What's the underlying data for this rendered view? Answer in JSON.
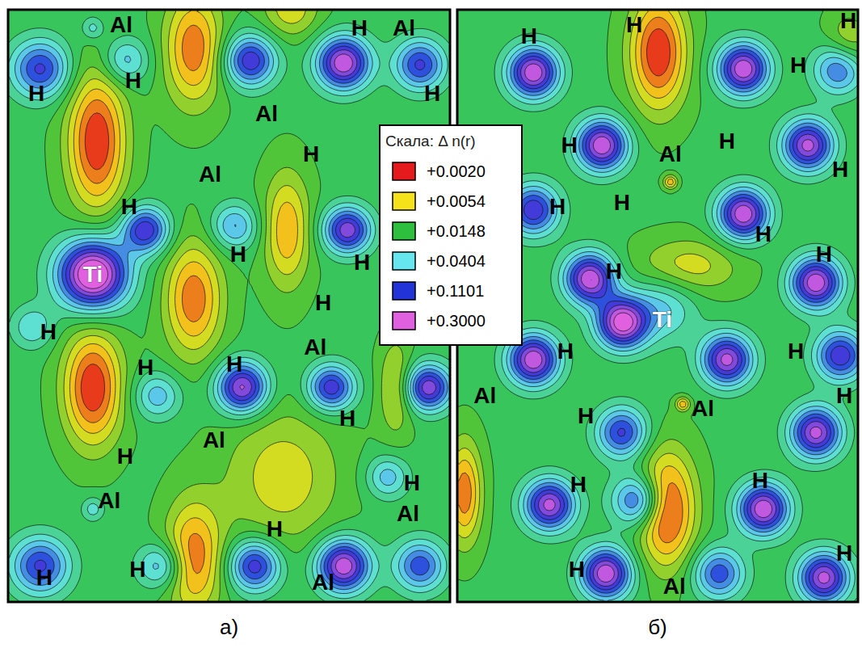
{
  "chart_data": {
    "type": "contour",
    "tick_labels": false,
    "legend": "top",
    "color_scale": {
      "title": "Скала: Δ n(r)",
      "ticks": [
        {
          "value": 0.002,
          "label": "+0.0020"
        },
        {
          "value": 0.0054,
          "label": "+0.0054"
        },
        {
          "value": 0.0148,
          "label": "+0.0148"
        },
        {
          "value": 0.0404,
          "label": "+0.0404"
        },
        {
          "value": 0.1101,
          "label": "+0.1101"
        },
        {
          "value": 0.3,
          "label": "+0.3000"
        }
      ],
      "colors": [
        "#e41a1c",
        "#f5e21b",
        "#2fbf3f",
        "#66e6ee",
        "#2233d8",
        "#e060e0"
      ]
    },
    "panels": [
      {
        "label": "а)",
        "xlim": [
          0,
          100
        ],
        "ylim": [
          0,
          100
        ],
        "background": 0.016,
        "features": [
          {
            "x": 7.3,
            "y": 10.0,
            "value": 0.12,
            "rx": 4.6,
            "ry": 3.4
          },
          {
            "x": 26.5,
            "y": 8.6,
            "value": 0.05,
            "rx": 3.7,
            "ry": 2.7
          },
          {
            "x": 54.8,
            "y": 8.6,
            "value": 0.15,
            "rx": 4.0,
            "ry": 3.0
          },
          {
            "x": 75.9,
            "y": 9.0,
            "value": 0.3,
            "rx": 4.2,
            "ry": 3.1
          },
          {
            "x": 93.2,
            "y": 9.3,
            "value": 0.12,
            "rx": 4.0,
            "ry": 3.0
          },
          {
            "x": 19.2,
            "y": 3.1,
            "value": 0.035,
            "rx": 1.8,
            "ry": 1.4
          },
          {
            "x": 31.1,
            "y": 37.2,
            "value": 0.15,
            "rx": 3.7,
            "ry": 2.7
          },
          {
            "x": 51.2,
            "y": 36.6,
            "value": 0.06,
            "rx": 3.7,
            "ry": 2.7
          },
          {
            "x": 76.8,
            "y": 37.2,
            "value": 0.2,
            "rx": 3.7,
            "ry": 2.7
          },
          {
            "x": 19.2,
            "y": 44.7,
            "value": 0.6,
            "rx": 5.5,
            "ry": 4.1
          },
          {
            "x": 33.8,
            "y": 65.2,
            "value": 0.05,
            "rx": 3.7,
            "ry": 2.7
          },
          {
            "x": 53.0,
            "y": 63.8,
            "value": 0.25,
            "rx": 4.0,
            "ry": 3.0
          },
          {
            "x": 73.1,
            "y": 63.8,
            "value": 0.15,
            "rx": 3.7,
            "ry": 2.7
          },
          {
            "x": 95.1,
            "y": 63.8,
            "value": 0.2,
            "rx": 3.7,
            "ry": 2.7
          },
          {
            "x": 7.3,
            "y": 93.9,
            "value": 0.12,
            "rx": 4.6,
            "ry": 3.4
          },
          {
            "x": 34.7,
            "y": 93.9,
            "value": 0.06,
            "rx": 3.7,
            "ry": 2.7
          },
          {
            "x": 55.8,
            "y": 93.9,
            "value": 0.15,
            "rx": 4.0,
            "ry": 3.0
          },
          {
            "x": 75.9,
            "y": 93.9,
            "value": 0.3,
            "rx": 4.2,
            "ry": 3.1
          },
          {
            "x": 93.2,
            "y": 93.9,
            "value": 0.1,
            "rx": 4.0,
            "ry": 3.0
          },
          {
            "x": 5.5,
            "y": 53.6,
            "value": 0.04,
            "rx": 3.3,
            "ry": 2.5
          },
          {
            "x": 85.9,
            "y": 78.9,
            "value": 0.05,
            "rx": 3.3,
            "ry": 2.5
          },
          {
            "x": 19.2,
            "y": 84.3,
            "value": 0.035,
            "rx": 1.8,
            "ry": 1.4
          },
          {
            "x": 20.1,
            "y": 22.2,
            "value": 0.002,
            "rx": 4.6,
            "ry": 8.2
          },
          {
            "x": 42.0,
            "y": 6.5,
            "value": 0.003,
            "rx": 4.6,
            "ry": 6.8
          },
          {
            "x": 63.1,
            "y": 37.2,
            "value": 0.004,
            "rx": 3.7,
            "ry": 6.8
          },
          {
            "x": 42.0,
            "y": 48.8,
            "value": 0.003,
            "rx": 4.6,
            "ry": 6.8
          },
          {
            "x": 19.2,
            "y": 63.8,
            "value": 0.002,
            "rx": 4.6,
            "ry": 6.8
          },
          {
            "x": 87.8,
            "y": 63.8,
            "value": 0.006,
            "rx": 2.7,
            "ry": 5.5
          },
          {
            "x": 62.2,
            "y": 78.9,
            "value": 0.006,
            "rx": 9.1,
            "ry": 8.2
          },
          {
            "x": 42.0,
            "y": 92.5,
            "value": 0.003,
            "rx": 4.6,
            "ry": 6.8
          },
          {
            "x": 64.0,
            "y": 0,
            "value": 0.006,
            "rx": 4.6,
            "ry": 3.4
          }
        ],
        "atoms": [
          {
            "label": "Al",
            "x": 25.6,
            "y": 2.5
          },
          {
            "label": "H",
            "x": 79.5,
            "y": 3.1
          },
          {
            "label": "Al",
            "x": 89.6,
            "y": 3.1
          },
          {
            "label": "H",
            "x": 6.4,
            "y": 14.1
          },
          {
            "label": "H",
            "x": 28.3,
            "y": 12.0
          },
          {
            "label": "H",
            "x": 96.0,
            "y": 14.1
          },
          {
            "label": "Al",
            "x": 58.5,
            "y": 17.5
          },
          {
            "label": "H",
            "x": 68.6,
            "y": 24.3
          },
          {
            "label": "Al",
            "x": 45.7,
            "y": 27.7
          },
          {
            "label": "H",
            "x": 27.4,
            "y": 33.2
          },
          {
            "label": "Ti",
            "x": 19.2,
            "y": 44.7,
            "color": "#ffffff"
          },
          {
            "label": "H",
            "x": 52.1,
            "y": 41.3
          },
          {
            "label": "H",
            "x": 80.1,
            "y": 42.7
          },
          {
            "label": "H",
            "x": 71.3,
            "y": 49.5
          },
          {
            "label": "H",
            "x": 9.1,
            "y": 54.3
          },
          {
            "label": "Al",
            "x": 69.5,
            "y": 57.0
          },
          {
            "label": "H",
            "x": 31.1,
            "y": 60.4
          },
          {
            "label": "H",
            "x": 51.2,
            "y": 59.8
          },
          {
            "label": "H",
            "x": 76.8,
            "y": 69.0
          },
          {
            "label": "Al",
            "x": 46.6,
            "y": 72.7
          },
          {
            "label": "H",
            "x": 26.5,
            "y": 75.4
          },
          {
            "label": "Al",
            "x": 22.9,
            "y": 82.9
          },
          {
            "label": "H",
            "x": 91.4,
            "y": 79.9
          },
          {
            "label": "Al",
            "x": 90.5,
            "y": 85.0
          },
          {
            "label": "H",
            "x": 60.3,
            "y": 87.7
          },
          {
            "label": "H",
            "x": 8.2,
            "y": 95.9
          },
          {
            "label": "H",
            "x": 29.3,
            "y": 94.5
          },
          {
            "label": "Al",
            "x": 71.3,
            "y": 96.6
          }
        ]
      },
      {
        "label": "б)",
        "xlim": [
          0,
          100
        ],
        "ylim": [
          0,
          100
        ],
        "background": 0.016,
        "features": [
          {
            "x": 19.0,
            "y": 10.6,
            "value": 0.3,
            "rx": 4.4,
            "ry": 3.0
          },
          {
            "x": 71.4,
            "y": 10.0,
            "value": 0.3,
            "rx": 4.4,
            "ry": 3.0
          },
          {
            "x": 95.6,
            "y": 10.0,
            "value": 0.12,
            "rx": 4.4,
            "ry": 3.0
          },
          {
            "x": 36.1,
            "y": 22.9,
            "value": 0.3,
            "rx": 4.4,
            "ry": 3.0
          },
          {
            "x": 87.5,
            "y": 22.9,
            "value": 0.25,
            "rx": 4.4,
            "ry": 3.0
          },
          {
            "x": 19.0,
            "y": 33.8,
            "value": 0.15,
            "rx": 4.4,
            "ry": 3.0
          },
          {
            "x": 71.4,
            "y": 34.5,
            "value": 0.3,
            "rx": 4.4,
            "ry": 3.0
          },
          {
            "x": 89.5,
            "y": 46.1,
            "value": 0.3,
            "rx": 4.4,
            "ry": 3.0
          },
          {
            "x": 33.1,
            "y": 45.4,
            "value": 0.3,
            "rx": 4.4,
            "ry": 3.0
          },
          {
            "x": 41.1,
            "y": 52.9,
            "value": 0.35,
            "rx": 4.4,
            "ry": 3.0
          },
          {
            "x": 19.0,
            "y": 59.1,
            "value": 0.3,
            "rx": 4.4,
            "ry": 3.0
          },
          {
            "x": 67.3,
            "y": 59.1,
            "value": 0.25,
            "rx": 4.4,
            "ry": 3.0
          },
          {
            "x": 95.6,
            "y": 58.4,
            "value": 0.15,
            "rx": 4.4,
            "ry": 3.0
          },
          {
            "x": 41.1,
            "y": 71.4,
            "value": 0.12,
            "rx": 4.4,
            "ry": 3.0
          },
          {
            "x": 89.5,
            "y": 71.4,
            "value": 0.25,
            "rx": 4.4,
            "ry": 3.0
          },
          {
            "x": 23.0,
            "y": 83.6,
            "value": 0.25,
            "rx": 4.4,
            "ry": 3.0
          },
          {
            "x": 45.2,
            "y": 82.9,
            "value": 0.12,
            "rx": 4.4,
            "ry": 3.0
          },
          {
            "x": 76.4,
            "y": 84.3,
            "value": 0.3,
            "rx": 4.4,
            "ry": 3.0
          },
          {
            "x": 37.1,
            "y": 95.2,
            "value": 0.3,
            "rx": 4.4,
            "ry": 3.0
          },
          {
            "x": 91.5,
            "y": 95.9,
            "value": 0.25,
            "rx": 4.4,
            "ry": 3.0
          },
          {
            "x": 65.3,
            "y": 95.2,
            "value": 0.1,
            "rx": 4.4,
            "ry": 3.0
          },
          {
            "x": 51.2,
            "y": 50.2,
            "value": 0.045,
            "rx": 6.0,
            "ry": 4.0
          },
          {
            "x": 53.2,
            "y": 29.1,
            "value": 0.004,
            "rx": 1.2,
            "ry": 0.8
          },
          {
            "x": 56.3,
            "y": 66.6,
            "value": 0.004,
            "rx": 1.2,
            "ry": 0.8
          },
          {
            "x": 50.2,
            "y": 7.2,
            "value": 0.002,
            "rx": 5.0,
            "ry": 6.8
          },
          {
            "x": 97.6,
            "y": 6.5,
            "value": 0.006,
            "rx": 4.0,
            "ry": 4.0
          },
          {
            "x": 57.3,
            "y": 43.4,
            "value": 0.006,
            "rx": 9.0,
            "ry": 3.4
          },
          {
            "x": 1.8,
            "y": 81.6,
            "value": 0.003,
            "rx": 3.0,
            "ry": 6.0
          },
          {
            "x": 52.2,
            "y": 84.3,
            "value": 0.002,
            "rx": 5.0,
            "ry": 6.8
          }
        ],
        "atoms": [
          {
            "label": "H",
            "x": 17.9,
            "y": 4.5
          },
          {
            "label": "H",
            "x": 44.2,
            "y": 2.5
          },
          {
            "label": "H",
            "x": 97.6,
            "y": 1.8
          },
          {
            "label": "H",
            "x": 85.1,
            "y": 9.3
          },
          {
            "label": "H",
            "x": 28.0,
            "y": 22.9
          },
          {
            "label": "Al",
            "x": 53.2,
            "y": 24.3
          },
          {
            "label": "H",
            "x": 67.3,
            "y": 22.2
          },
          {
            "label": "H",
            "x": 95.6,
            "y": 27.0
          },
          {
            "label": "H",
            "x": 25.0,
            "y": 33.2
          },
          {
            "label": "H",
            "x": 41.1,
            "y": 32.5
          },
          {
            "label": "H",
            "x": 76.4,
            "y": 37.9
          },
          {
            "label": "H",
            "x": 91.5,
            "y": 41.3
          },
          {
            "label": "H",
            "x": 39.1,
            "y": 44.1
          },
          {
            "label": "Ti",
            "x": 51.2,
            "y": 52.3,
            "color": "#ffffff"
          },
          {
            "label": "H",
            "x": 27.0,
            "y": 57.7
          },
          {
            "label": "H",
            "x": 84.5,
            "y": 57.7
          },
          {
            "label": "Al",
            "x": 6.9,
            "y": 65.2
          },
          {
            "label": "H",
            "x": 32.1,
            "y": 68.6
          },
          {
            "label": "Al",
            "x": 61.3,
            "y": 67.3
          },
          {
            "label": "H",
            "x": 96.6,
            "y": 65.2
          },
          {
            "label": "H",
            "x": 30.2,
            "y": 80.2
          },
          {
            "label": "H",
            "x": 75.6,
            "y": 79.5
          },
          {
            "label": "H",
            "x": 96.6,
            "y": 91.8
          },
          {
            "label": "H",
            "x": 29.8,
            "y": 94.5
          },
          {
            "label": "Al",
            "x": 54.2,
            "y": 97.3
          }
        ]
      }
    ]
  }
}
